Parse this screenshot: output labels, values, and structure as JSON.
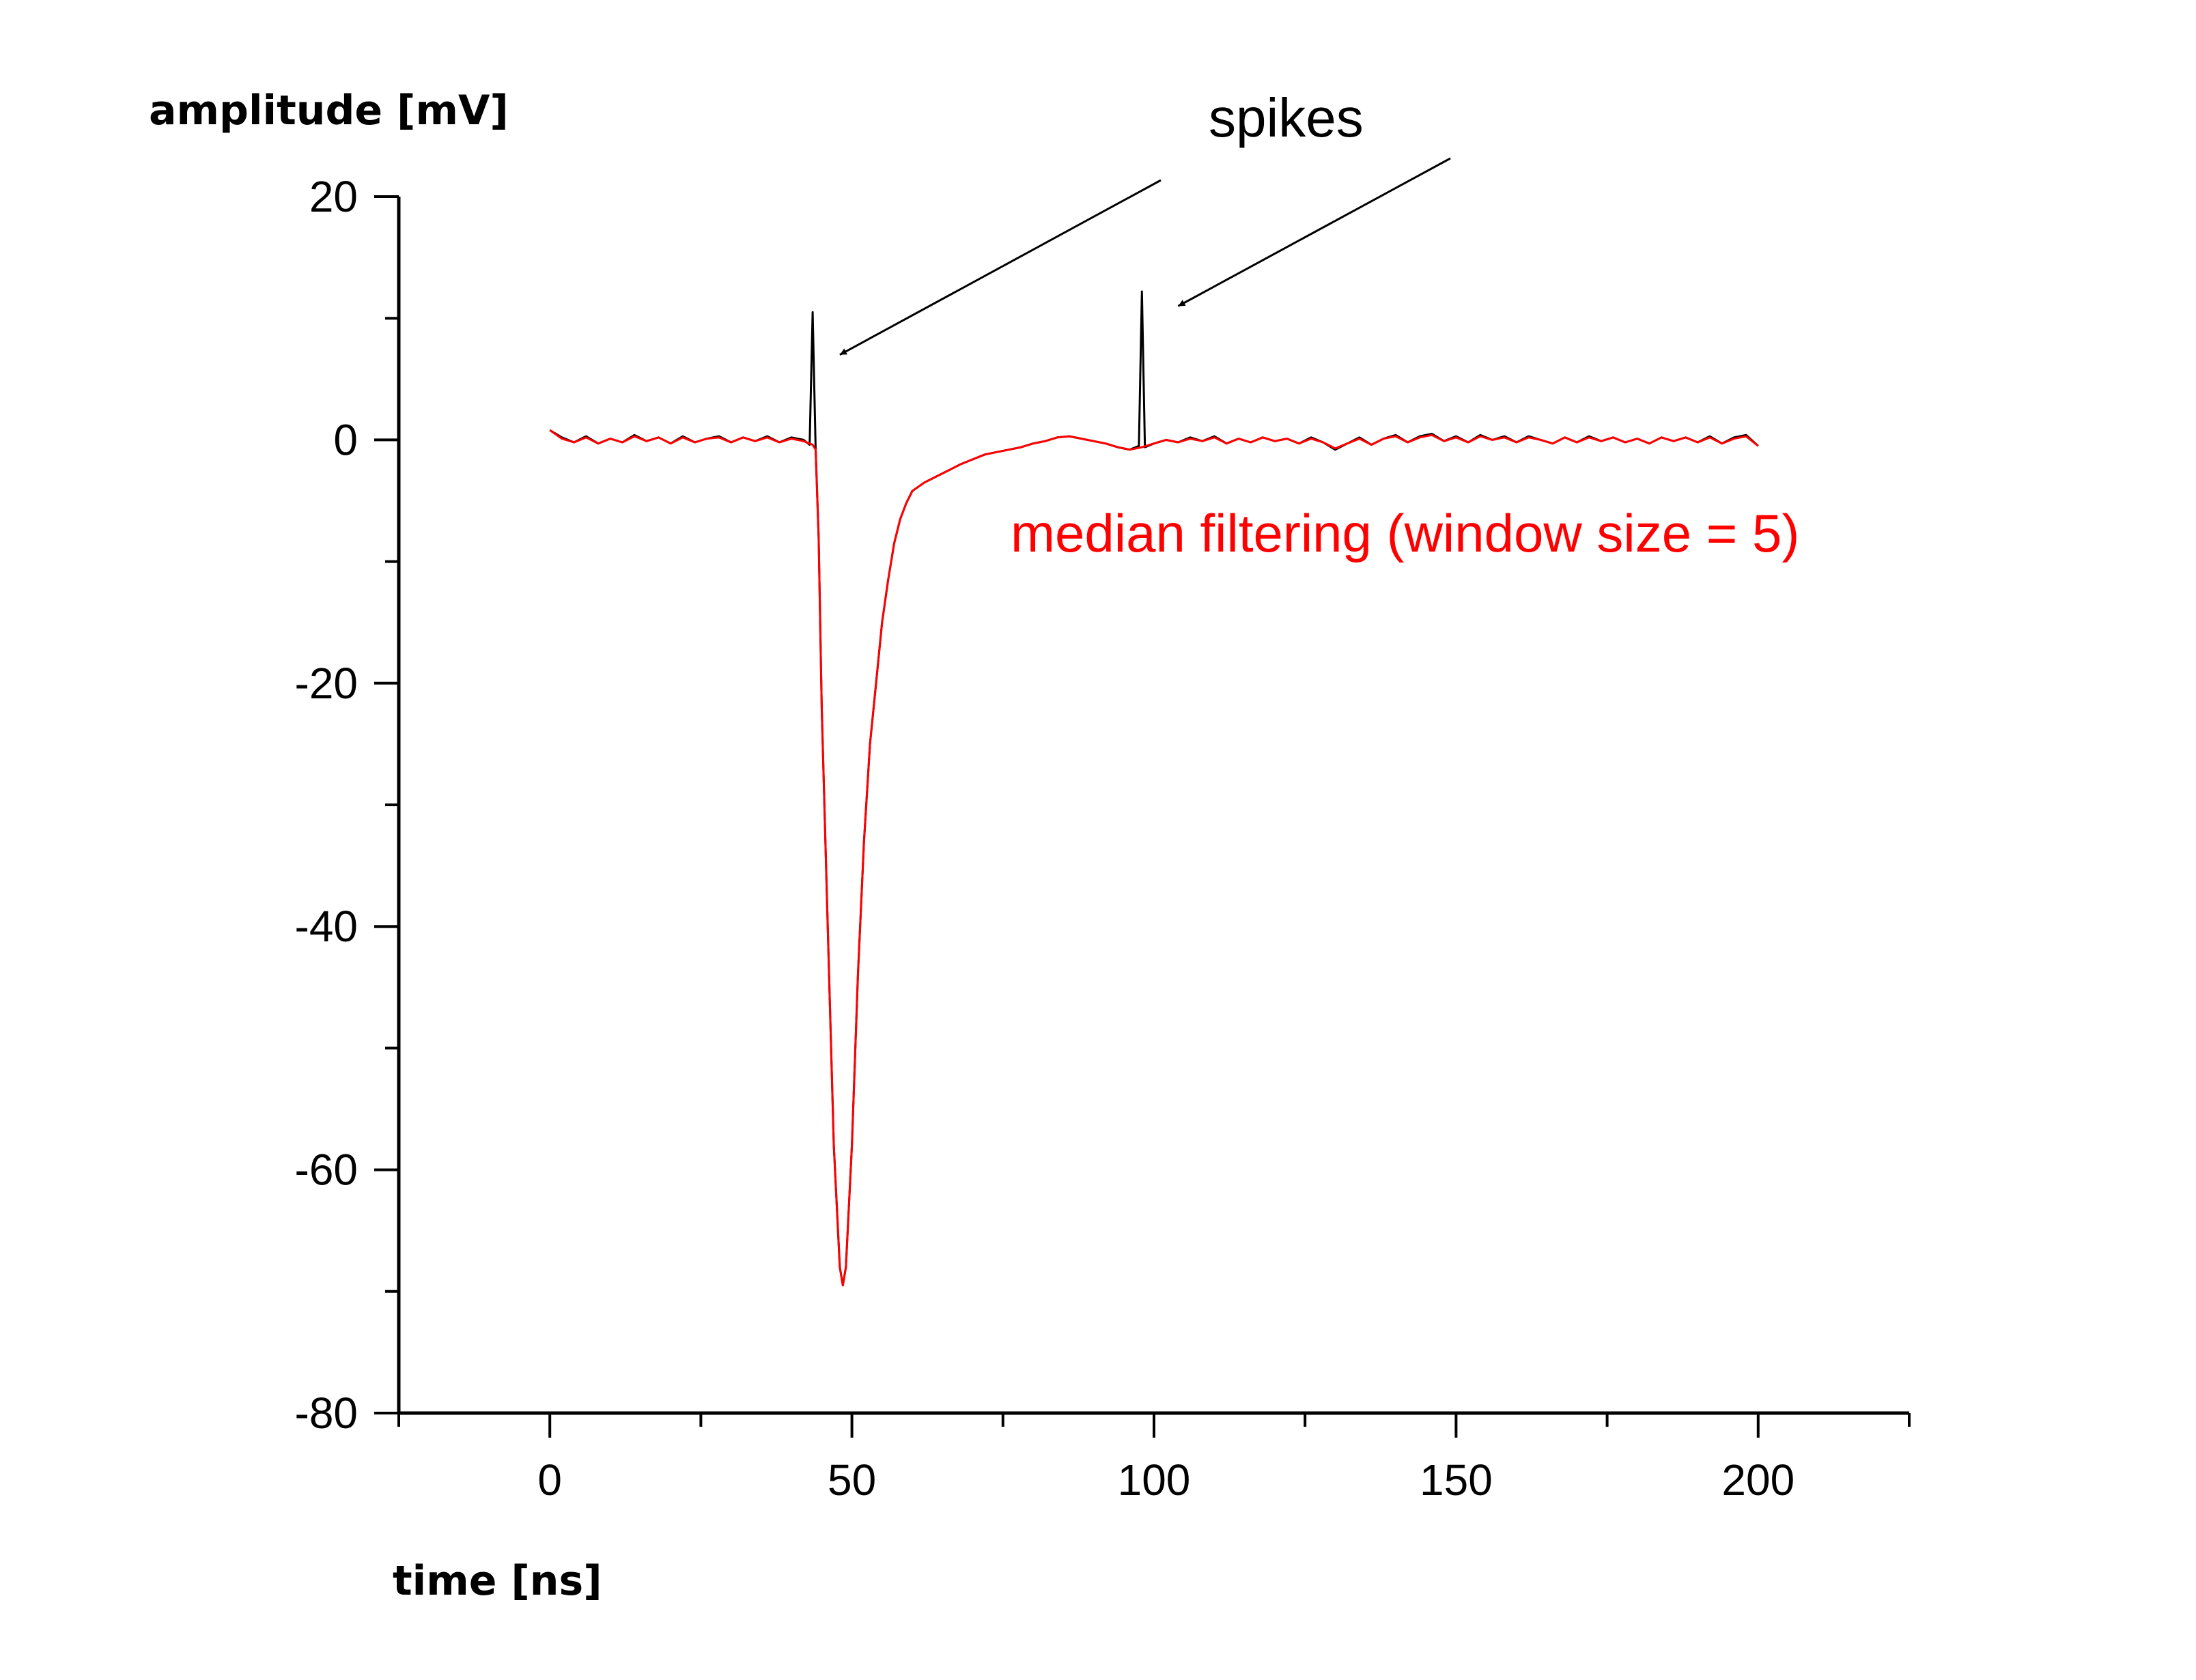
{
  "chart_data": {
    "type": "line",
    "xlabel": "time [ns]",
    "ylabel": "amplitude [mV]",
    "xlim": [
      -25,
      225
    ],
    "ylim": [
      -80,
      20
    ],
    "x_ticks": [
      0,
      50,
      100,
      150,
      200
    ],
    "x_tick_labels": [
      "0",
      "50",
      "100",
      "150",
      "200"
    ],
    "y_ticks": [
      -80,
      -60,
      -40,
      -20,
      0,
      20
    ],
    "y_tick_labels": [
      "-80",
      "-60",
      "-40",
      "-20",
      "0",
      "20"
    ],
    "grid": false,
    "legend": "none",
    "series": [
      {
        "color": "#000000",
        "points": [
          [
            0,
            0.8
          ],
          [
            2,
            0.2
          ],
          [
            4,
            -0.2
          ],
          [
            6,
            0.3
          ],
          [
            8,
            -0.3
          ],
          [
            10,
            0.1
          ],
          [
            12,
            -0.2
          ],
          [
            14,
            0.4
          ],
          [
            16,
            -0.1
          ],
          [
            18,
            0.2
          ],
          [
            20,
            -0.3
          ],
          [
            22,
            0.3
          ],
          [
            24,
            -0.2
          ],
          [
            26,
            0.1
          ],
          [
            28,
            0.3
          ],
          [
            30,
            -0.2
          ],
          [
            32,
            0.2
          ],
          [
            34,
            -0.1
          ],
          [
            36,
            0.3
          ],
          [
            38,
            -0.2
          ],
          [
            40,
            0.2
          ],
          [
            42,
            0.0
          ],
          [
            43.0,
            -0.4
          ],
          [
            43.5,
            10.5
          ],
          [
            44.0,
            -0.8
          ],
          [
            44.5,
            -8
          ],
          [
            45,
            -22
          ],
          [
            46,
            -40
          ],
          [
            47,
            -58
          ],
          [
            48,
            -68
          ],
          [
            48.5,
            -69.5
          ],
          [
            49,
            -68
          ],
          [
            50,
            -58
          ],
          [
            51,
            -44
          ],
          [
            52,
            -33
          ],
          [
            53,
            -25
          ],
          [
            54,
            -20
          ],
          [
            55,
            -15
          ],
          [
            56,
            -11.5
          ],
          [
            57,
            -8.5
          ],
          [
            58,
            -6.5
          ],
          [
            59,
            -5.2
          ],
          [
            60,
            -4.2
          ],
          [
            62,
            -3.5
          ],
          [
            64,
            -3.0
          ],
          [
            66,
            -2.5
          ],
          [
            68,
            -2.0
          ],
          [
            70,
            -1.6
          ],
          [
            72,
            -1.2
          ],
          [
            74,
            -1.0
          ],
          [
            76,
            -0.8
          ],
          [
            78,
            -0.6
          ],
          [
            80,
            -0.3
          ],
          [
            82,
            -0.1
          ],
          [
            84,
            0.2
          ],
          [
            86,
            0.3
          ],
          [
            88,
            0.1
          ],
          [
            90,
            -0.1
          ],
          [
            92,
            -0.3
          ],
          [
            94,
            -0.6
          ],
          [
            96,
            -0.8
          ],
          [
            97.5,
            -0.5
          ],
          [
            98,
            12.2
          ],
          [
            98.5,
            -0.6
          ],
          [
            100,
            -0.3
          ],
          [
            102,
            0.0
          ],
          [
            104,
            -0.2
          ],
          [
            106,
            0.2
          ],
          [
            108,
            -0.1
          ],
          [
            110,
            0.3
          ],
          [
            112,
            -0.3
          ],
          [
            114,
            0.1
          ],
          [
            116,
            -0.2
          ],
          [
            118,
            0.2
          ],
          [
            120,
            -0.1
          ],
          [
            122,
            0.1
          ],
          [
            124,
            -0.3
          ],
          [
            126,
            0.2
          ],
          [
            128,
            -0.2
          ],
          [
            130,
            -0.8
          ],
          [
            132,
            -0.3
          ],
          [
            134,
            0.2
          ],
          [
            136,
            -0.4
          ],
          [
            138,
            0.1
          ],
          [
            140,
            0.4
          ],
          [
            142,
            -0.2
          ],
          [
            144,
            0.3
          ],
          [
            146,
            0.5
          ],
          [
            148,
            -0.1
          ],
          [
            150,
            0.3
          ],
          [
            152,
            -0.2
          ],
          [
            154,
            0.4
          ],
          [
            156,
            0.0
          ],
          [
            158,
            0.3
          ],
          [
            160,
            -0.2
          ],
          [
            162,
            0.3
          ],
          [
            164,
            0.0
          ],
          [
            166,
            -0.3
          ],
          [
            168,
            0.2
          ],
          [
            170,
            -0.2
          ],
          [
            172,
            0.3
          ],
          [
            174,
            -0.1
          ],
          [
            176,
            0.2
          ],
          [
            178,
            -0.2
          ],
          [
            180,
            0.1
          ],
          [
            182,
            -0.3
          ],
          [
            184,
            0.2
          ],
          [
            186,
            -0.1
          ],
          [
            188,
            0.2
          ],
          [
            190,
            -0.2
          ],
          [
            192,
            0.3
          ],
          [
            194,
            -0.3
          ],
          [
            196,
            0.2
          ],
          [
            198,
            0.4
          ],
          [
            200,
            -0.5
          ]
        ]
      },
      {
        "color": "#ff0000",
        "points": [
          [
            0,
            0.8
          ],
          [
            2,
            0.1
          ],
          [
            4,
            -0.2
          ],
          [
            6,
            0.2
          ],
          [
            8,
            -0.3
          ],
          [
            10,
            0.1
          ],
          [
            12,
            -0.2
          ],
          [
            14,
            0.3
          ],
          [
            16,
            -0.1
          ],
          [
            18,
            0.2
          ],
          [
            20,
            -0.3
          ],
          [
            22,
            0.2
          ],
          [
            24,
            -0.2
          ],
          [
            26,
            0.1
          ],
          [
            28,
            0.2
          ],
          [
            30,
            -0.2
          ],
          [
            32,
            0.2
          ],
          [
            34,
            -0.1
          ],
          [
            36,
            0.2
          ],
          [
            38,
            -0.2
          ],
          [
            40,
            0.1
          ],
          [
            42,
            -0.1
          ],
          [
            43.5,
            -0.4
          ],
          [
            44.0,
            -0.8
          ],
          [
            44.5,
            -8
          ],
          [
            45,
            -22
          ],
          [
            46,
            -40
          ],
          [
            47,
            -58
          ],
          [
            48,
            -68
          ],
          [
            48.5,
            -69.5
          ],
          [
            49,
            -68
          ],
          [
            50,
            -58
          ],
          [
            51,
            -44
          ],
          [
            52,
            -33
          ],
          [
            53,
            -25
          ],
          [
            54,
            -20
          ],
          [
            55,
            -15
          ],
          [
            56,
            -11.5
          ],
          [
            57,
            -8.5
          ],
          [
            58,
            -6.5
          ],
          [
            59,
            -5.2
          ],
          [
            60,
            -4.2
          ],
          [
            62,
            -3.5
          ],
          [
            64,
            -3.0
          ],
          [
            66,
            -2.5
          ],
          [
            68,
            -2.0
          ],
          [
            70,
            -1.6
          ],
          [
            72,
            -1.2
          ],
          [
            74,
            -1.0
          ],
          [
            76,
            -0.8
          ],
          [
            78,
            -0.6
          ],
          [
            80,
            -0.3
          ],
          [
            82,
            -0.1
          ],
          [
            84,
            0.2
          ],
          [
            86,
            0.3
          ],
          [
            88,
            0.1
          ],
          [
            90,
            -0.1
          ],
          [
            92,
            -0.3
          ],
          [
            94,
            -0.6
          ],
          [
            96,
            -0.8
          ],
          [
            98,
            -0.6
          ],
          [
            100,
            -0.3
          ],
          [
            102,
            0.0
          ],
          [
            104,
            -0.2
          ],
          [
            106,
            0.1
          ],
          [
            108,
            -0.1
          ],
          [
            110,
            0.2
          ],
          [
            112,
            -0.3
          ],
          [
            114,
            0.1
          ],
          [
            116,
            -0.2
          ],
          [
            118,
            0.2
          ],
          [
            120,
            -0.1
          ],
          [
            122,
            0.1
          ],
          [
            124,
            -0.3
          ],
          [
            126,
            0.1
          ],
          [
            128,
            -0.2
          ],
          [
            130,
            -0.7
          ],
          [
            132,
            -0.3
          ],
          [
            134,
            0.1
          ],
          [
            136,
            -0.4
          ],
          [
            138,
            0.1
          ],
          [
            140,
            0.3
          ],
          [
            142,
            -0.2
          ],
          [
            144,
            0.2
          ],
          [
            146,
            0.4
          ],
          [
            148,
            -0.1
          ],
          [
            150,
            0.2
          ],
          [
            152,
            -0.2
          ],
          [
            154,
            0.3
          ],
          [
            156,
            0.0
          ],
          [
            158,
            0.2
          ],
          [
            160,
            -0.2
          ],
          [
            162,
            0.2
          ],
          [
            164,
            0.0
          ],
          [
            166,
            -0.3
          ],
          [
            168,
            0.2
          ],
          [
            170,
            -0.2
          ],
          [
            172,
            0.2
          ],
          [
            174,
            -0.1
          ],
          [
            176,
            0.2
          ],
          [
            178,
            -0.2
          ],
          [
            180,
            0.1
          ],
          [
            182,
            -0.3
          ],
          [
            184,
            0.2
          ],
          [
            186,
            -0.1
          ],
          [
            188,
            0.2
          ],
          [
            190,
            -0.2
          ],
          [
            192,
            0.2
          ],
          [
            194,
            -0.3
          ],
          [
            196,
            0.1
          ],
          [
            198,
            0.3
          ],
          [
            200,
            -0.5
          ]
        ]
      }
    ],
    "annotations": [
      {
        "text": "spikes",
        "color": "#000000",
        "arrows": [
          {
            "x": 48,
            "y": 7
          },
          {
            "x": 104,
            "y": 11
          }
        ]
      },
      {
        "text": "median filtering (window size = 5)",
        "color": "#ff0000"
      }
    ]
  }
}
